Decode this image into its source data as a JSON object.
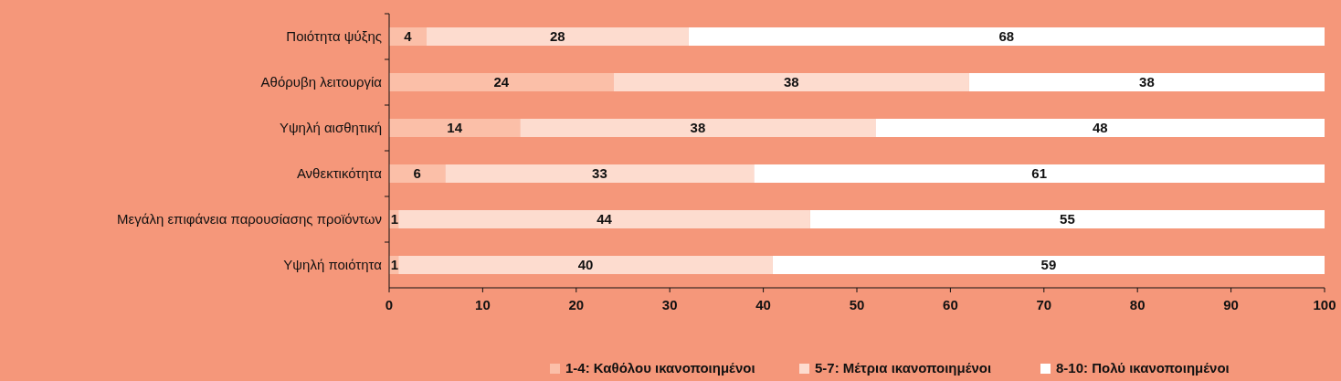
{
  "chart_data": {
    "type": "bar",
    "orientation": "horizontal",
    "stacked": true,
    "data_labels": true,
    "legend": "bottom",
    "categories": [
      "Ποιότητα ψύξης",
      "Αθόρυβη λειτουργία",
      "Υψηλή αισθητική",
      "Ανθεκτικότητα",
      "Μεγάλη επιφάνεια παρουσίασης προϊόντων",
      "Υψηλή ποιότητα"
    ],
    "series": [
      {
        "name": "1-4: Καθόλου ικανοποιημένοι",
        "color": "#fbbfa8",
        "values": [
          4,
          24,
          14,
          6,
          1,
          1
        ]
      },
      {
        "name": "5-7: Μέτρια ικανοποιημένοι",
        "color": "#fddccf",
        "values": [
          28,
          38,
          38,
          33,
          44,
          40
        ]
      },
      {
        "name": "8-10: Πολύ ικανοποιημένοι",
        "color": "#ffffff",
        "values": [
          68,
          38,
          48,
          61,
          55,
          59
        ]
      }
    ],
    "xlim": [
      0,
      100
    ],
    "xticks": [
      0,
      10,
      20,
      30,
      40,
      50,
      60,
      70,
      80,
      90,
      100
    ]
  }
}
